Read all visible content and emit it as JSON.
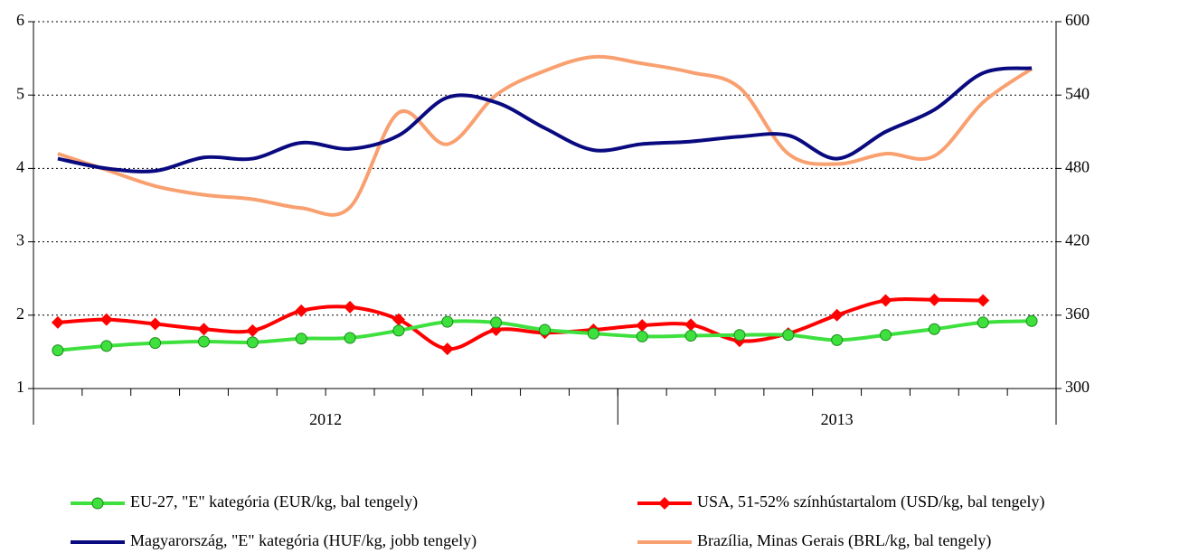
{
  "chart_data": {
    "type": "line",
    "categories": [
      null,
      null,
      null,
      null,
      null,
      null,
      null,
      null,
      null,
      null,
      null,
      null,
      null,
      null,
      null,
      null,
      null,
      null,
      null,
      null,
      null
    ],
    "x_groups": [
      {
        "label": "2012",
        "span": 12
      },
      {
        "label": "2013",
        "span": 9
      }
    ],
    "ylim": [
      1,
      6
    ],
    "yticks": [
      1,
      2,
      3,
      4,
      5,
      6
    ],
    "y2lim": [
      300,
      600
    ],
    "y2ticks": [
      300,
      360,
      420,
      480,
      540,
      600
    ],
    "grid": true,
    "series": [
      {
        "name": "EU-27, \"E\" kategória (EUR/kg, bal tengely)",
        "color": "#3ee03e",
        "marker": "circle",
        "values": [
          1.52,
          1.58,
          1.62,
          1.64,
          1.63,
          1.68,
          1.69,
          1.79,
          1.91,
          1.9,
          1.8,
          1.75,
          1.71,
          1.72,
          1.73,
          1.73,
          1.66,
          1.73,
          1.81,
          1.9,
          1.92
        ]
      },
      {
        "name": "USA, 51-52% színhústartalom (USD/kg, bal tengely)",
        "color": "#ff0000",
        "marker": "diamond",
        "values": [
          1.9,
          1.94,
          1.88,
          1.81,
          1.79,
          2.06,
          2.11,
          1.94,
          1.54,
          1.8,
          1.76,
          1.8,
          1.86,
          1.87,
          1.65,
          1.75,
          2.0,
          2.2,
          2.21,
          2.2,
          null
        ]
      },
      {
        "name": "Magyarország, \"E\" kategória (HUF/kg, jobb tengely)",
        "color": "#0a0a80",
        "axis": "y2",
        "values": [
          488,
          480,
          478,
          489,
          488,
          501,
          496,
          507,
          538,
          534,
          513,
          495,
          500,
          502,
          506,
          507,
          488,
          510,
          528,
          558,
          562
        ]
      },
      {
        "name": "Brazília, Minas Gerais (BRL/kg, bal tengely)",
        "color": "#f9a070",
        "values": [
          4.2,
          3.98,
          3.76,
          3.64,
          3.58,
          3.46,
          3.47,
          4.76,
          4.33,
          5.0,
          5.33,
          5.52,
          5.43,
          5.31,
          5.1,
          4.2,
          4.06,
          4.2,
          4.17,
          4.9,
          5.36
        ]
      }
    ]
  }
}
